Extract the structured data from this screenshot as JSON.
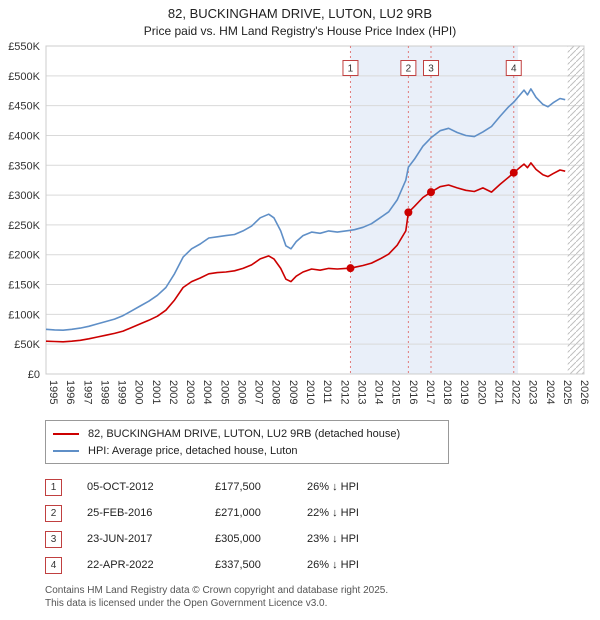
{
  "title": "82, BUCKINGHAM DRIVE, LUTON, LU2 9RB",
  "subtitle": "Price paid vs. HM Land Registry's House Price Index (HPI)",
  "colors": {
    "price_line": "#cc0000",
    "hpi_line": "#5f8fc7",
    "shaded_band": "#e9eff9",
    "sale_vline": "#e07b7b",
    "marker_box_border": "#c04040",
    "grid": "#d9d9d9"
  },
  "chart_data": {
    "type": "line",
    "title": "82, BUCKINGHAM DRIVE, LUTON, LU2 9RB",
    "subtitle": "Price paid vs. HM Land Registry's House Price Index (HPI)",
    "xlabel": "",
    "ylabel": "",
    "xlim": [
      1995,
      2026.4
    ],
    "ylim": [
      0,
      550000
    ],
    "y_tick_step": 50000,
    "y_ticks": [
      "£0",
      "£50K",
      "£100K",
      "£150K",
      "£200K",
      "£250K",
      "£300K",
      "£350K",
      "£400K",
      "£450K",
      "£500K",
      "£550K"
    ],
    "x_ticks": [
      1995,
      1996,
      1997,
      1998,
      1999,
      2000,
      2001,
      2002,
      2003,
      2004,
      2005,
      2006,
      2007,
      2008,
      2009,
      2010,
      2011,
      2012,
      2013,
      2014,
      2015,
      2016,
      2017,
      2018,
      2019,
      2020,
      2021,
      2022,
      2023,
      2024,
      2025,
      2026
    ],
    "grid": true,
    "legend_position": "bottom",
    "shaded_region": [
      2012.77,
      2022.55
    ],
    "shaded_color": "#e9eff9",
    "hatched_region": [
      2025.45,
      2026.4
    ],
    "series": [
      {
        "name": "HPI: Average price, detached house, Luton",
        "color": "#5f8fc7",
        "x": [
          1995.0,
          1995.5,
          1996.0,
          1996.5,
          1997.0,
          1997.5,
          1998.0,
          1998.5,
          1999.0,
          1999.5,
          2000.0,
          2000.5,
          2001.0,
          2001.5,
          2002.0,
          2002.5,
          2003.0,
          2003.5,
          2004.0,
          2004.5,
          2005.0,
          2005.5,
          2006.0,
          2006.5,
          2007.0,
          2007.5,
          2008.0,
          2008.3,
          2008.7,
          2009.0,
          2009.3,
          2009.6,
          2010.0,
          2010.5,
          2011.0,
          2011.5,
          2012.0,
          2012.5,
          2012.77,
          2013.0,
          2013.5,
          2014.0,
          2014.5,
          2015.0,
          2015.5,
          2016.0,
          2016.15,
          2016.5,
          2017.0,
          2017.47,
          2018.0,
          2018.5,
          2019.0,
          2019.5,
          2020.0,
          2020.5,
          2021.0,
          2021.5,
          2022.0,
          2022.3,
          2022.6,
          2022.9,
          2023.1,
          2023.3,
          2023.6,
          2024.0,
          2024.3,
          2024.6,
          2025.0,
          2025.3
        ],
        "y": [
          75000,
          74000,
          73500,
          75000,
          77000,
          80000,
          84000,
          88000,
          92000,
          98000,
          106000,
          114000,
          122000,
          132000,
          145000,
          168000,
          196000,
          210000,
          218000,
          228000,
          230000,
          232000,
          234000,
          240000,
          248000,
          262000,
          268000,
          262000,
          240000,
          215000,
          210000,
          222000,
          232000,
          238000,
          236000,
          240000,
          238000,
          240000,
          241000,
          242000,
          246000,
          252000,
          262000,
          272000,
          292000,
          325000,
          347000,
          360000,
          382000,
          396000,
          408000,
          412000,
          405000,
          400000,
          398000,
          406000,
          415000,
          432000,
          448000,
          456000,
          466000,
          476000,
          468000,
          478000,
          464000,
          452000,
          448000,
          455000,
          462000,
          460000
        ]
      },
      {
        "name": "82, BUCKINGHAM DRIVE, LUTON, LU2 9RB (detached house)",
        "color": "#cc0000",
        "x": [
          1995.0,
          1995.5,
          1996.0,
          1996.5,
          1997.0,
          1997.5,
          1998.0,
          1998.5,
          1999.0,
          1999.5,
          2000.0,
          2000.5,
          2001.0,
          2001.5,
          2002.0,
          2002.5,
          2003.0,
          2003.5,
          2004.0,
          2004.5,
          2005.0,
          2005.5,
          2006.0,
          2006.5,
          2007.0,
          2007.5,
          2008.0,
          2008.3,
          2008.7,
          2009.0,
          2009.3,
          2009.6,
          2010.0,
          2010.5,
          2011.0,
          2011.5,
          2012.0,
          2012.5,
          2012.77,
          2013.0,
          2013.5,
          2014.0,
          2014.5,
          2015.0,
          2015.5,
          2016.0,
          2016.15,
          2016.5,
          2017.0,
          2017.47,
          2018.0,
          2018.5,
          2019.0,
          2019.5,
          2020.0,
          2020.5,
          2021.0,
          2021.5,
          2022.0,
          2022.3,
          2022.6,
          2022.9,
          2023.1,
          2023.3,
          2023.6,
          2024.0,
          2024.3,
          2024.6,
          2025.0,
          2025.3
        ],
        "y": [
          55000,
          54500,
          54000,
          55000,
          56500,
          59000,
          62000,
          65000,
          68000,
          72000,
          78000,
          84000,
          90000,
          97000,
          107000,
          124000,
          145000,
          155000,
          161000,
          168000,
          170000,
          171000,
          173000,
          177000,
          183000,
          193000,
          198000,
          193000,
          177000,
          159000,
          155000,
          164000,
          171000,
          176000,
          174000,
          177000,
          176000,
          177000,
          177500,
          179000,
          182000,
          186000,
          193000,
          201000,
          216000,
          240000,
          271000,
          281000,
          296000,
          305000,
          314000,
          317000,
          312000,
          308000,
          306000,
          312000,
          305000,
          318000,
          330000,
          337500,
          345000,
          352000,
          346000,
          354000,
          343000,
          334000,
          331000,
          336000,
          342000,
          340000
        ]
      }
    ],
    "sales_markers": [
      {
        "label": "1",
        "x": 2012.77,
        "y": 177500
      },
      {
        "label": "2",
        "x": 2016.15,
        "y": 271000
      },
      {
        "label": "3",
        "x": 2017.47,
        "y": 305000
      },
      {
        "label": "4",
        "x": 2022.3,
        "y": 337500
      }
    ]
  },
  "legend": [
    {
      "label": "82, BUCKINGHAM DRIVE, LUTON, LU2 9RB (detached house)",
      "color": "#cc0000"
    },
    {
      "label": "HPI: Average price, detached house, Luton",
      "color": "#5f8fc7"
    }
  ],
  "sales_table": [
    {
      "num": "1",
      "date": "05-OCT-2012",
      "price": "£177,500",
      "hpi": "26% ↓ HPI"
    },
    {
      "num": "2",
      "date": "25-FEB-2016",
      "price": "£271,000",
      "hpi": "22% ↓ HPI"
    },
    {
      "num": "3",
      "date": "23-JUN-2017",
      "price": "£305,000",
      "hpi": "23% ↓ HPI"
    },
    {
      "num": "4",
      "date": "22-APR-2022",
      "price": "£337,500",
      "hpi": "26% ↓ HPI"
    }
  ],
  "footer": {
    "line1": "Contains HM Land Registry data © Crown copyright and database right 2025.",
    "line2": "This data is licensed under the Open Government Licence v3.0."
  }
}
